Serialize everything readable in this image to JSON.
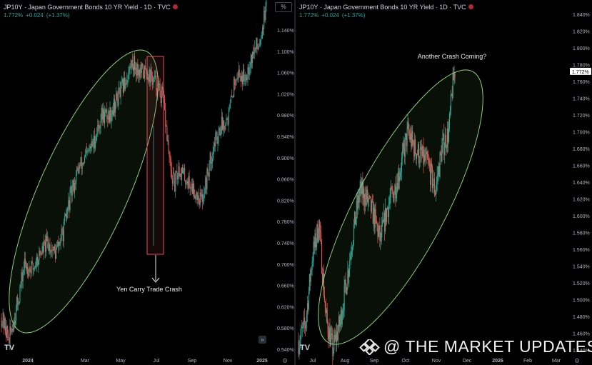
{
  "left_panel": {
    "title": "JP10Y · Japan Government Bonds 10 YR Yield · 1D · TVC",
    "change": {
      "last": "1.772%",
      "delta": "+0.024",
      "pct": "(+1.37%)"
    },
    "annotation": "Yen Carry Trade Crash",
    "tv_logo": "TV"
  },
  "right_panel": {
    "title": "JP10Y · Japan Government Bonds 10 YR Yield · 1D · TVC",
    "change": {
      "last": "1.772%",
      "delta": "+0.024",
      "pct": "(+1.37%)"
    },
    "annotation": "Another Crash Coming?",
    "tv_logo": "TV",
    "pct_button": "%"
  },
  "watermark": "@ THE MARKET UPDATES",
  "colors": {
    "up": "#26a69a",
    "down": "#ef5350",
    "ellipse": "#8fcf7a",
    "box": "#e0505a",
    "bg": "#000000",
    "axis_text": "#b2b5be",
    "last_price_tag": "#ffffff"
  },
  "chart_data": [
    {
      "type": "candlestick",
      "title": "JP10Y · Japan Government Bonds 10 YR Yield · 1D · TVC",
      "x_ticks": [
        "2024",
        "Mar",
        "May",
        "Jul",
        "Sep",
        "Nov",
        "2025"
      ],
      "y_ticks": [
        "0.540%",
        "0.580%",
        "0.620%",
        "0.660%",
        "0.700%",
        "0.740%",
        "0.780%",
        "0.820%",
        "0.860%",
        "0.900%",
        "0.940%",
        "0.980%",
        "1.020%",
        "1.060%",
        "1.100%",
        "1.140%"
      ],
      "ylim": [
        0.52,
        1.19
      ],
      "trend_points": [
        [
          0,
          0.6
        ],
        [
          10,
          0.56
        ],
        [
          20,
          0.62
        ],
        [
          30,
          0.7
        ],
        [
          40,
          0.69
        ],
        [
          50,
          0.72
        ],
        [
          60,
          0.74
        ],
        [
          70,
          0.72
        ],
        [
          80,
          0.76
        ],
        [
          90,
          0.83
        ],
        [
          100,
          0.88
        ],
        [
          110,
          0.9
        ],
        [
          120,
          0.93
        ],
        [
          130,
          0.98
        ],
        [
          140,
          0.98
        ],
        [
          150,
          1.01
        ],
        [
          160,
          1.04
        ],
        [
          170,
          1.08
        ],
        [
          180,
          1.06
        ],
        [
          190,
          1.06
        ],
        [
          200,
          1.04
        ],
        [
          210,
          1.01
        ],
        [
          220,
          0.87
        ],
        [
          225,
          0.85
        ],
        [
          230,
          0.88
        ],
        [
          240,
          0.86
        ],
        [
          250,
          0.84
        ],
        [
          260,
          0.82
        ],
        [
          265,
          0.85
        ],
        [
          275,
          0.92
        ],
        [
          285,
          0.96
        ],
        [
          295,
          0.98
        ],
        [
          305,
          1.06
        ],
        [
          315,
          1.05
        ],
        [
          325,
          1.09
        ],
        [
          335,
          1.12
        ],
        [
          345,
          1.19
        ]
      ],
      "annotations": [
        {
          "text": "Yen Carry Trade Crash",
          "kind": "rectangle+arrow",
          "x_range": [
            205,
            229
          ],
          "y_range": [
            0.725,
            1.09
          ]
        },
        {
          "kind": "ellipse",
          "note": "uptrend channel Jan-Jul 2024"
        }
      ]
    },
    {
      "type": "candlestick",
      "title": "JP10Y · Japan Government Bonds 10 YR Yield · 1D · TVC",
      "x_ticks": [
        "Jul",
        "Aug",
        "Sep",
        "Oct",
        "Nov",
        "Dec",
        "2026",
        "Feb",
        "Mar"
      ],
      "y_ticks": [
        "1.840%",
        "1.820%",
        "1.800%",
        "1.780%",
        "1.760%",
        "1.740%",
        "1.720%",
        "1.700%",
        "1.680%",
        "1.660%",
        "1.640%",
        "1.620%",
        "1.600%",
        "1.580%",
        "1.560%",
        "1.540%",
        "1.520%",
        "1.500%",
        "1.480%",
        "1.460%",
        "1.440%"
      ],
      "ylim": [
        1.43,
        1.85
      ],
      "last_price": "1.772%",
      "trend_points": [
        [
          0,
          1.45
        ],
        [
          10,
          1.47
        ],
        [
          20,
          1.55
        ],
        [
          30,
          1.59
        ],
        [
          40,
          1.48
        ],
        [
          50,
          1.44
        ],
        [
          60,
          1.47
        ],
        [
          70,
          1.52
        ],
        [
          80,
          1.58
        ],
        [
          90,
          1.63
        ],
        [
          100,
          1.62
        ],
        [
          110,
          1.6
        ],
        [
          120,
          1.57
        ],
        [
          130,
          1.61
        ],
        [
          140,
          1.63
        ],
        [
          150,
          1.66
        ],
        [
          160,
          1.7
        ],
        [
          170,
          1.68
        ],
        [
          180,
          1.67
        ],
        [
          190,
          1.66
        ],
        [
          200,
          1.63
        ],
        [
          210,
          1.68
        ],
        [
          220,
          1.7
        ],
        [
          225,
          1.75
        ],
        [
          230,
          1.78
        ]
      ],
      "annotations": [
        {
          "text": "Another Crash Coming?",
          "kind": "label"
        },
        {
          "kind": "ellipse",
          "note": "uptrend Aug-Nov"
        }
      ]
    }
  ]
}
